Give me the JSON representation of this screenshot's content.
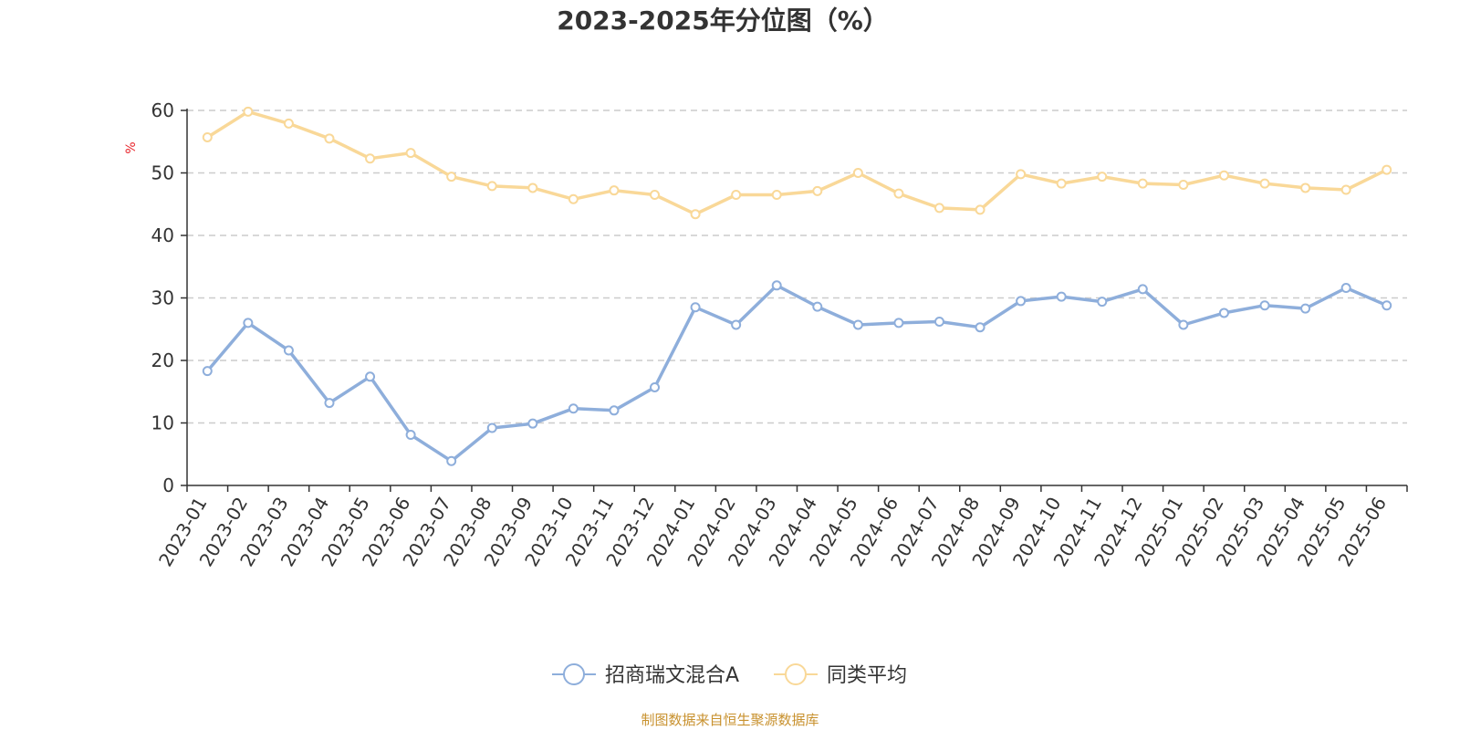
{
  "chart_data": {
    "type": "line",
    "title": "2023-2025年分位图（%）",
    "ylabel": "%",
    "xlabel": "",
    "ylim": [
      0,
      60
    ],
    "yticks": [
      0,
      10,
      20,
      30,
      40,
      50,
      60
    ],
    "grid": true,
    "legend_position": "bottom",
    "categories": [
      "2023-01",
      "2023-02",
      "2023-03",
      "2023-04",
      "2023-05",
      "2023-06",
      "2023-07",
      "2023-08",
      "2023-09",
      "2023-10",
      "2023-11",
      "2023-12",
      "2024-01",
      "2024-02",
      "2024-03",
      "2024-04",
      "2024-05",
      "2024-06",
      "2024-07",
      "2024-08",
      "2024-09",
      "2024-10",
      "2024-11",
      "2024-12",
      "2025-01",
      "2025-02",
      "2025-03",
      "2025-04",
      "2025-05",
      "2025-06"
    ],
    "series": [
      {
        "name": "招商瑞文混合A",
        "color": "#8eaedb",
        "values": [
          18.3,
          26.0,
          21.6,
          13.2,
          17.4,
          8.1,
          3.9,
          9.2,
          9.9,
          12.3,
          12.0,
          15.7,
          28.5,
          25.7,
          32.0,
          28.6,
          25.7,
          26.0,
          26.2,
          25.3,
          29.5,
          30.2,
          29.4,
          31.4,
          25.7,
          27.6,
          28.8,
          28.3,
          31.6,
          28.8
        ]
      },
      {
        "name": "同类平均",
        "color": "#f9d898",
        "values": [
          55.7,
          59.8,
          57.9,
          55.5,
          52.3,
          53.2,
          49.4,
          47.9,
          47.6,
          45.8,
          47.2,
          46.5,
          43.4,
          46.5,
          46.5,
          47.1,
          50.0,
          46.7,
          44.4,
          44.1,
          49.8,
          48.3,
          49.4,
          48.3,
          48.1,
          49.6,
          48.3,
          47.6,
          47.3,
          50.5
        ]
      }
    ]
  },
  "source_note": "制图数据来自恒生聚源数据库"
}
